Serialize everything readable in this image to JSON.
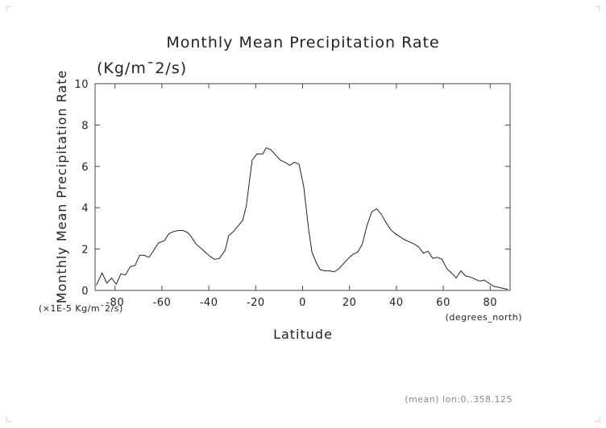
{
  "chart_data": {
    "type": "line",
    "title": "Monthly Mean Precipitation Rate",
    "units_header": "(Kg/m¯2/s)",
    "xlabel": "Latitude",
    "ylabel": "Monthly Mean Precipitation Rate",
    "x_units": "(degrees_north)",
    "y_units": "(×1E-5 Kg/m¯2/s)",
    "footer": "(mean) lon:0..358.125",
    "xlim": [
      -88.5,
      88.5
    ],
    "ylim": [
      0,
      10
    ],
    "x_ticks": [
      -80,
      -60,
      -40,
      -20,
      0,
      20,
      40,
      60,
      80
    ],
    "y_ticks": [
      0,
      2,
      4,
      6,
      8,
      10
    ],
    "x_tick_labels": [
      "-80",
      "-60",
      "-40",
      "-20",
      "0",
      "20",
      "40",
      "60",
      "80"
    ],
    "y_tick_labels": [
      "0",
      "2",
      "4",
      "6",
      "8",
      "10"
    ],
    "grid": false,
    "series": [
      {
        "x": [
          -88,
          -85.5,
          -83.5,
          -81.5,
          -79.5,
          -77.5,
          -75.5,
          -73.5,
          -71.5,
          -69.5,
          -67.5,
          -65.5,
          -64,
          -61.5,
          -59,
          -57,
          -55,
          -53,
          -51,
          -49,
          -47.5,
          -45.5,
          -43.5,
          -41.5,
          -39.5,
          -37.5,
          -35.5,
          -33,
          -31.5,
          -29.5,
          -28,
          -25.5,
          -24,
          -21.5,
          -19.5,
          -17,
          -15.5,
          -13.5,
          -11.5,
          -9.5,
          -7.5,
          -5.5,
          -3.5,
          -1.5,
          0.5,
          2.5,
          4,
          6,
          7.5,
          9.5,
          11.5,
          13.5,
          15.5,
          17.5,
          19.5,
          21.5,
          23.5,
          25.5,
          27.5,
          29.5,
          31.5,
          33.5,
          35.5,
          37.5,
          39.5,
          41.5,
          43.5,
          45.5,
          47.5,
          49.5,
          51.5,
          53.5,
          55.5,
          57.5,
          59.5,
          61.5,
          63.5,
          65.5,
          67.5,
          69.5,
          71.5,
          73.5,
          75.5,
          77.5,
          79.5,
          81.5,
          83.5,
          85.5,
          87.5
        ],
        "y": [
          0.25,
          0.85,
          0.35,
          0.6,
          0.3,
          0.8,
          0.75,
          1.15,
          1.2,
          1.7,
          1.7,
          1.6,
          1.85,
          2.3,
          2.4,
          2.75,
          2.85,
          2.9,
          2.9,
          2.8,
          2.6,
          2.25,
          2.05,
          1.85,
          1.65,
          1.5,
          1.55,
          1.95,
          2.65,
          2.85,
          3.05,
          3.4,
          4.1,
          6.3,
          6.6,
          6.6,
          6.9,
          6.8,
          6.55,
          6.3,
          6.2,
          6.05,
          6.2,
          6.1,
          5.0,
          3.0,
          1.85,
          1.3,
          1.0,
          0.95,
          0.95,
          0.9,
          1.05,
          1.3,
          1.55,
          1.75,
          1.85,
          2.25,
          3.15,
          3.8,
          3.95,
          3.7,
          3.3,
          2.95,
          2.75,
          2.6,
          2.45,
          2.35,
          2.25,
          2.1,
          1.8,
          1.9,
          1.55,
          1.6,
          1.5,
          1.05,
          0.85,
          0.6,
          0.95,
          0.7,
          0.65,
          0.55,
          0.45,
          0.5,
          0.35,
          0.2,
          0.15,
          0.1,
          0.05
        ]
      }
    ]
  }
}
